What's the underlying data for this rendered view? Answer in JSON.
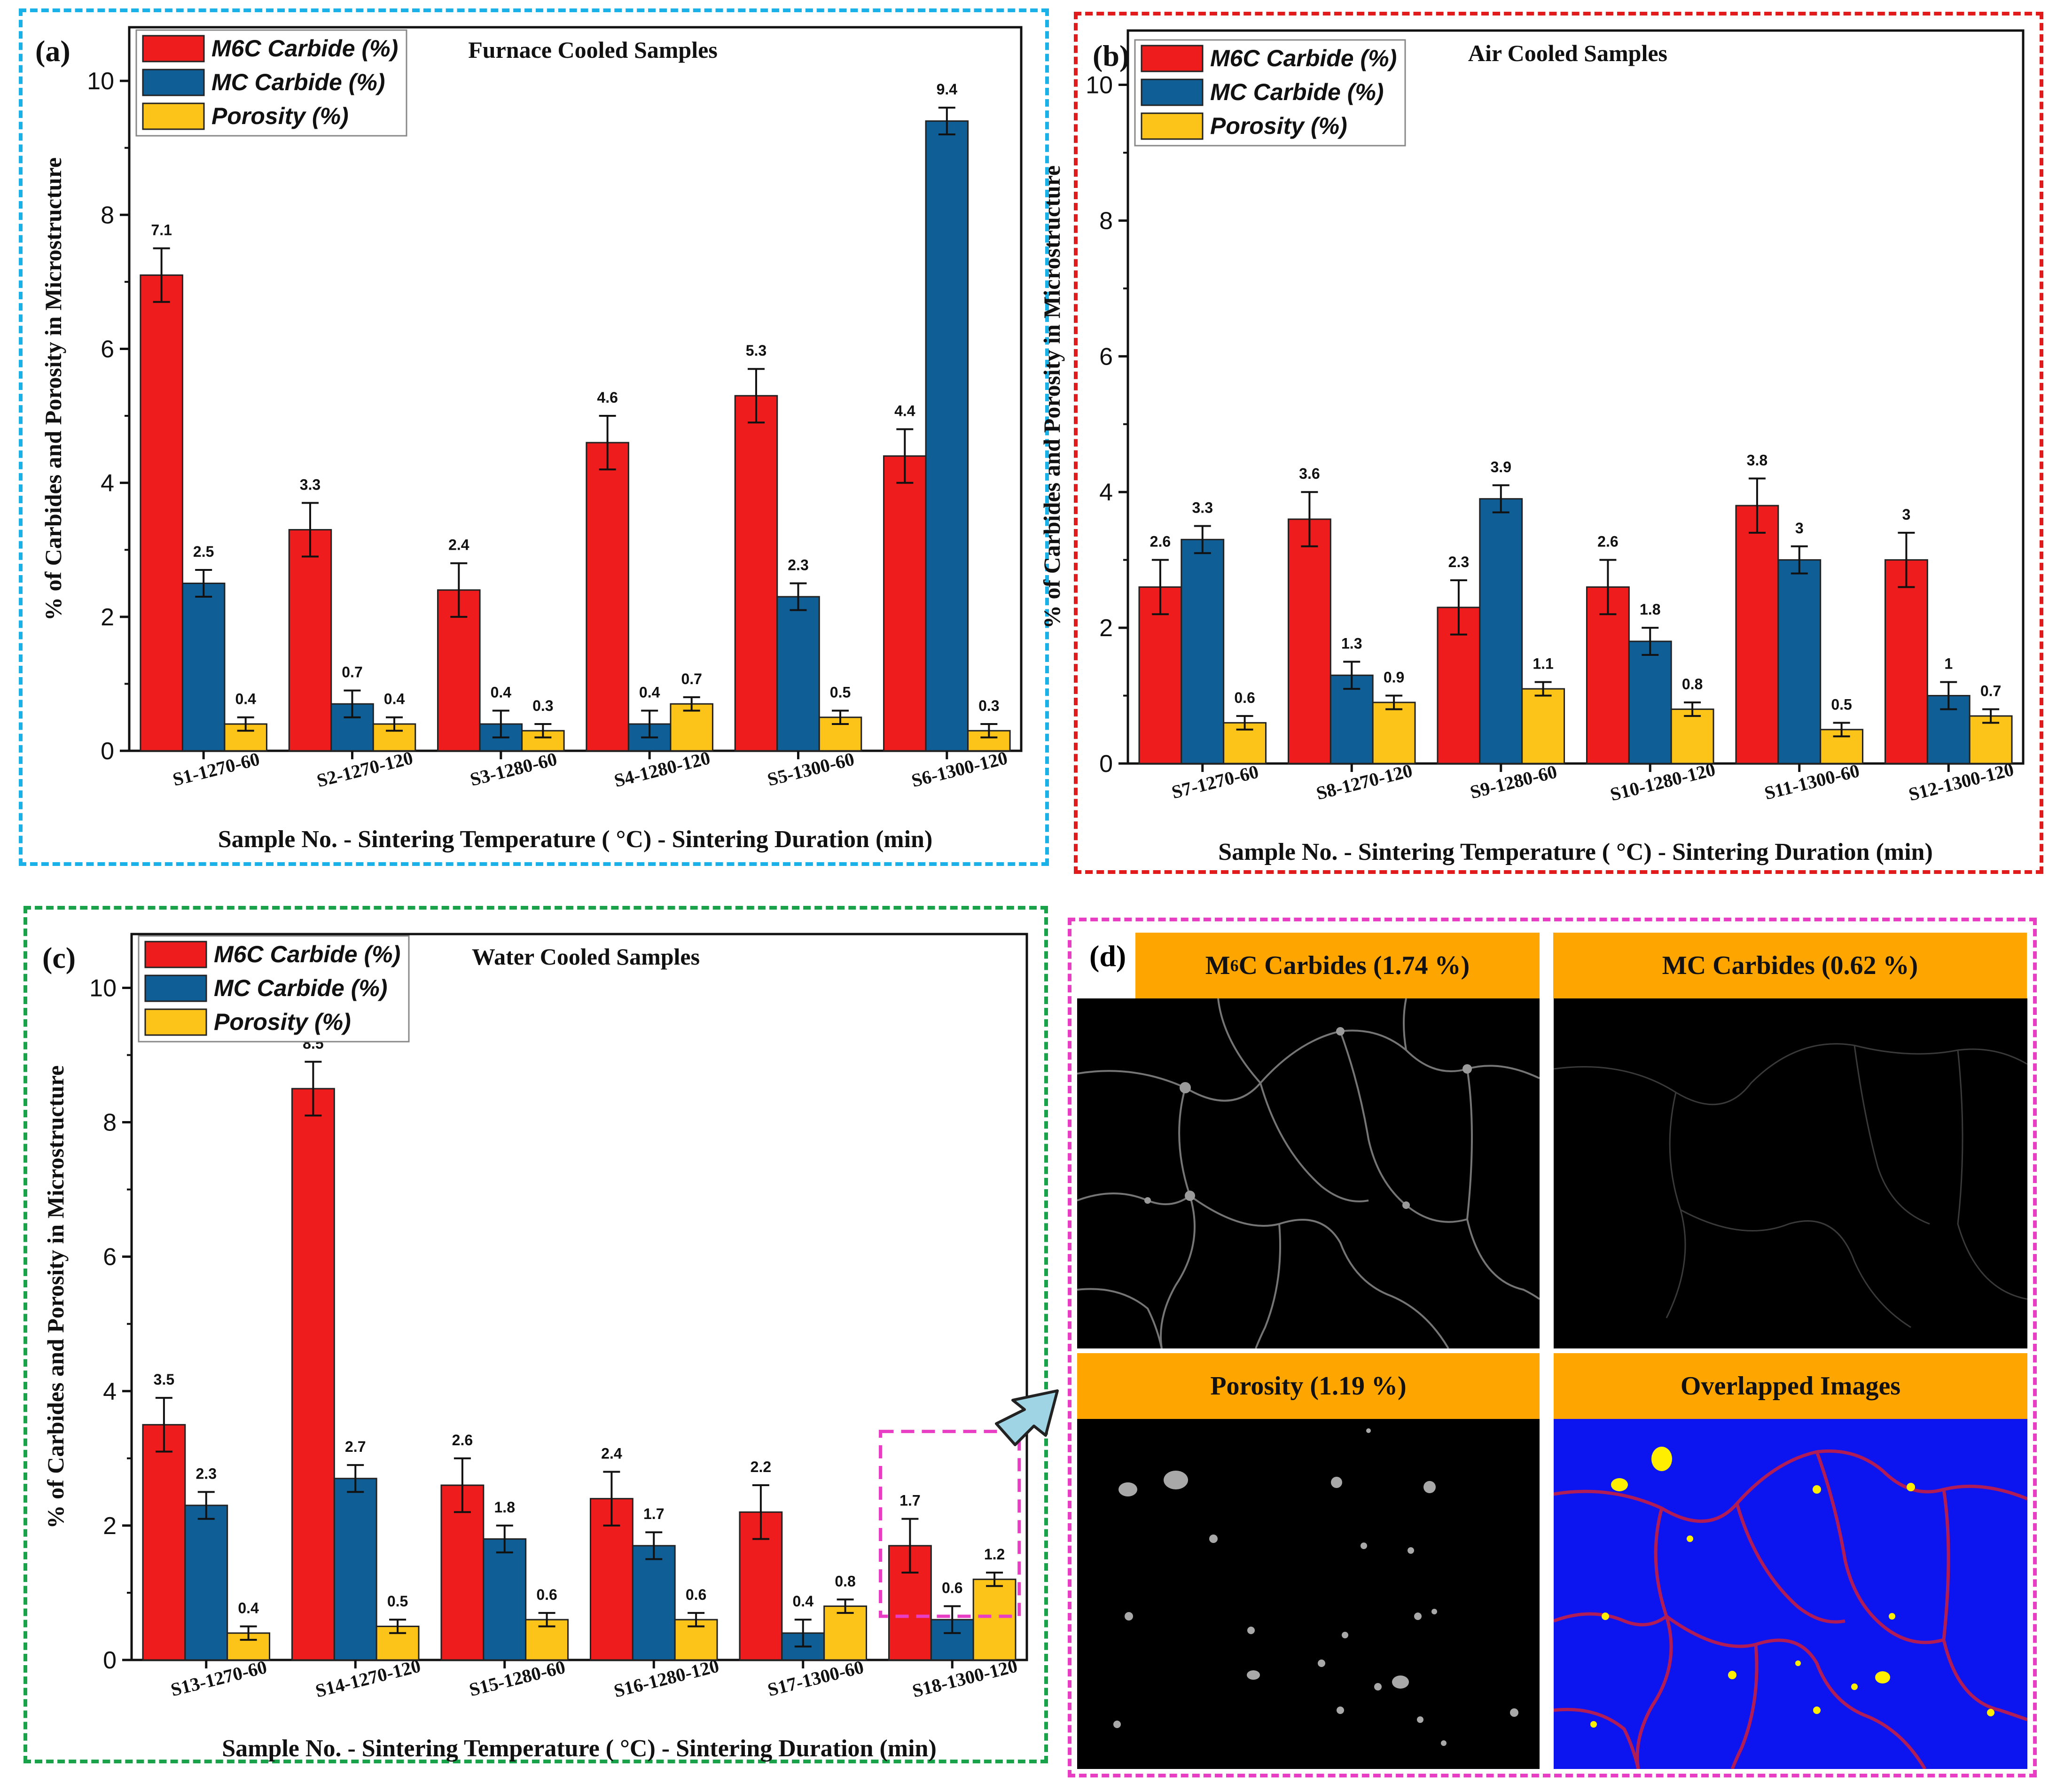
{
  "chart_data": [
    {
      "panel_label": "(a)",
      "type": "bar",
      "title": "Furnace Cooled Samples",
      "xlabel": "Sample No. - Sintering Temperature ( °C) - Sintering Duration (min)",
      "ylabel": "% of Carbides and Porosity in Microstructure",
      "ylim": [
        0,
        10.8
      ],
      "yticks": [
        0,
        2,
        4,
        6,
        8,
        10
      ],
      "categories": [
        "S1-1270-60",
        "S2-1270-120",
        "S3-1280-60",
        "S4-1280-120",
        "S5-1300-60",
        "S6-1300-120"
      ],
      "series": [
        {
          "name": "M6C Carbide (%)",
          "color": "#ee1c1c",
          "values": [
            7.1,
            3.3,
            2.4,
            4.6,
            5.3,
            4.4
          ],
          "errors": [
            0.4,
            0.4,
            0.4,
            0.4,
            0.4,
            0.4
          ]
        },
        {
          "name": "MC Carbide (%)",
          "color": "#0f5f96",
          "values": [
            2.5,
            0.7,
            0.4,
            0.4,
            2.3,
            9.4
          ],
          "errors": [
            0.2,
            0.2,
            0.2,
            0.2,
            0.2,
            0.2
          ]
        },
        {
          "name": "Porosity (%)",
          "color": "#fcc419",
          "values": [
            0.4,
            0.4,
            0.3,
            0.7,
            0.5,
            0.3
          ],
          "errors": [
            0.1,
            0.1,
            0.1,
            0.1,
            0.1,
            0.1
          ]
        }
      ],
      "legend": [
        "M6C Carbide (%)",
        "MC Carbide (%)",
        "Porosity (%)"
      ],
      "legend_position": "top-left"
    },
    {
      "panel_label": "(b)",
      "type": "bar",
      "title": "Air Cooled Samples",
      "xlabel": "Sample No. - Sintering Temperature ( °C) - Sintering Duration (min)",
      "ylabel": "% of Carbides and Porosity in Microstructure",
      "ylim": [
        0,
        10.8
      ],
      "yticks": [
        0,
        2,
        4,
        6,
        8,
        10
      ],
      "categories": [
        "S7-1270-60",
        "S8-1270-120",
        "S9-1280-60",
        "S10-1280-120",
        "S11-1300-60",
        "S12-1300-120"
      ],
      "series": [
        {
          "name": "M6C Carbide (%)",
          "color": "#ee1c1c",
          "values": [
            2.6,
            3.6,
            2.3,
            2.6,
            3.8,
            3
          ],
          "errors": [
            0.4,
            0.4,
            0.4,
            0.4,
            0.4,
            0.4
          ]
        },
        {
          "name": "MC Carbide (%)",
          "color": "#0f5f96",
          "values": [
            3.3,
            1.3,
            3.9,
            1.8,
            3,
            1
          ],
          "errors": [
            0.2,
            0.2,
            0.2,
            0.2,
            0.2,
            0.2
          ]
        },
        {
          "name": "Porosity (%)",
          "color": "#fcc419",
          "values": [
            0.6,
            0.9,
            1.1,
            0.8,
            0.5,
            0.7
          ],
          "errors": [
            0.1,
            0.1,
            0.1,
            0.1,
            0.1,
            0.1
          ]
        }
      ],
      "legend": [
        "M6C Carbide (%)",
        "MC Carbide (%)",
        "Porosity (%)"
      ],
      "legend_position": "top-left"
    },
    {
      "panel_label": "(c)",
      "type": "bar",
      "title": "Water Cooled Samples",
      "xlabel": "Sample No. - Sintering Temperature ( °C) - Sintering Duration (min)",
      "ylabel": "% of Carbides and Porosity in Microstructure",
      "ylim": [
        0,
        10.8
      ],
      "yticks": [
        0,
        2,
        4,
        6,
        8,
        10
      ],
      "categories": [
        "S13-1270-60",
        "S14-1270-120",
        "S15-1280-60",
        "S16-1280-120",
        "S17-1300-60",
        "S18-1300-120"
      ],
      "series": [
        {
          "name": "M6C Carbide (%)",
          "color": "#ee1c1c",
          "values": [
            3.5,
            8.5,
            2.6,
            2.4,
            2.2,
            1.7
          ],
          "errors": [
            0.4,
            0.4,
            0.4,
            0.4,
            0.4,
            0.4
          ]
        },
        {
          "name": "MC Carbide (%)",
          "color": "#0f5f96",
          "values": [
            2.3,
            2.7,
            1.8,
            1.7,
            0.4,
            0.6
          ],
          "errors": [
            0.2,
            0.2,
            0.2,
            0.2,
            0.2,
            0.2
          ]
        },
        {
          "name": "Porosity (%)",
          "color": "#fcc419",
          "values": [
            0.4,
            0.5,
            0.6,
            0.6,
            0.8,
            1.2
          ],
          "errors": [
            0.1,
            0.1,
            0.1,
            0.1,
            0.1,
            0.1
          ]
        }
      ],
      "legend": [
        "M6C Carbide (%)",
        "MC Carbide (%)",
        "Porosity (%)"
      ],
      "legend_position": "top-left",
      "highlighted_category": "S18-1300-120"
    }
  ],
  "panel_d": {
    "label": "(d)",
    "images": [
      {
        "title_prefix": "M",
        "title_sub": "6",
        "title_suffix": "C Carbides (1.74 %)",
        "kind": "m6c"
      },
      {
        "title_prefix": "MC Carbides (0.62 %)",
        "title_sub": "",
        "title_suffix": "",
        "kind": "mc"
      },
      {
        "title_prefix": "Porosity (1.19 %)",
        "title_sub": "",
        "title_suffix": "",
        "kind": "porosity"
      },
      {
        "title_prefix": "Overlapped Images",
        "title_sub": "",
        "title_suffix": "",
        "kind": "overlap"
      }
    ]
  }
}
